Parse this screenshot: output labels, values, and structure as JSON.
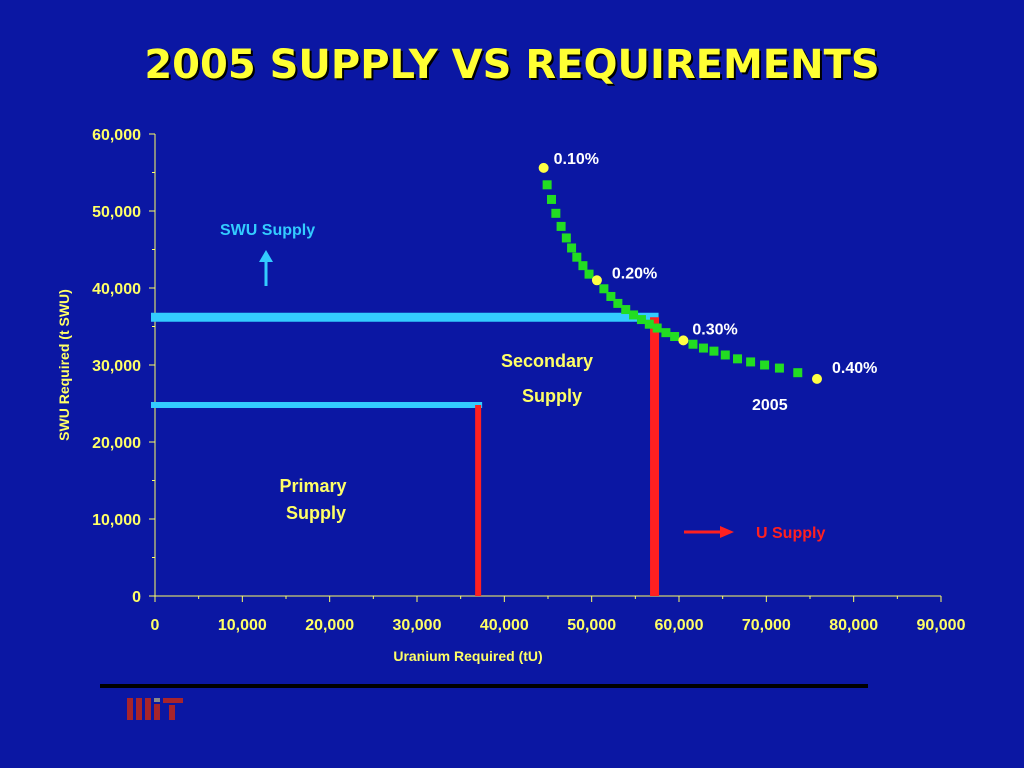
{
  "title": "2005 SUPPLY VS REQUIREMENTS",
  "colors": {
    "background": "#0b17a3",
    "title": "#ffff33",
    "axis_text": "#ffff66",
    "curve": "#22dd22",
    "curve_labeled_point": "#ffff44",
    "swu_supply": "#33ccff",
    "u_supply": "#ff2020"
  },
  "chart_data": {
    "type": "scatter",
    "xlabel": "Uranium Required (tU)",
    "ylabel": "SWU Required (t SWU)",
    "xlim": [
      0,
      90000
    ],
    "ylim": [
      0,
      60000
    ],
    "x_ticks": [
      0,
      10000,
      20000,
      30000,
      40000,
      50000,
      60000,
      70000,
      80000,
      90000
    ],
    "x_tick_labels": [
      "0",
      "10,000",
      "20,000",
      "30,000",
      "40,000",
      "50,000",
      "60,000",
      "70,000",
      "80,000",
      "90,000"
    ],
    "y_ticks": [
      0,
      10000,
      20000,
      30000,
      40000,
      50000,
      60000
    ],
    "y_tick_labels": [
      "0",
      "10,000",
      "20,000",
      "30,000",
      "40,000",
      "50,000",
      "60,000"
    ],
    "grid": false,
    "legend": "none",
    "series": [
      {
        "points": [
          [
            44500,
            55600
          ],
          [
            44900,
            53400
          ],
          [
            45400,
            51500
          ],
          [
            45900,
            49700
          ],
          [
            46500,
            48000
          ],
          [
            47100,
            46500
          ],
          [
            47700,
            45200
          ],
          [
            48300,
            44000
          ],
          [
            49000,
            42900
          ],
          [
            49700,
            41800
          ],
          [
            50600,
            41000
          ],
          [
            51400,
            39900
          ],
          [
            52200,
            38900
          ],
          [
            53000,
            38000
          ],
          [
            53900,
            37200
          ],
          [
            54800,
            36500
          ],
          [
            55700,
            35900
          ],
          [
            56600,
            35300
          ],
          [
            57500,
            34800
          ],
          [
            58500,
            34200
          ],
          [
            59500,
            33700
          ],
          [
            60500,
            33200
          ],
          [
            61600,
            32700
          ],
          [
            62800,
            32200
          ],
          [
            64000,
            31800
          ],
          [
            65300,
            31300
          ],
          [
            66700,
            30800
          ],
          [
            68200,
            30400
          ],
          [
            69800,
            30000
          ],
          [
            71500,
            29600
          ],
          [
            73600,
            29000
          ],
          [
            75800,
            28200
          ]
        ]
      }
    ],
    "labeled_points": [
      {
        "label": "0.10%",
        "x": 44500,
        "y": 55600
      },
      {
        "label": "0.20%",
        "x": 50600,
        "y": 41000
      },
      {
        "label": "0.30%",
        "x": 60500,
        "y": 33200
      },
      {
        "label": "0.40%",
        "x": 75800,
        "y": 28200
      }
    ],
    "curve_label": "2005",
    "supply_lines": {
      "primary": {
        "swu": 24800,
        "uranium": 37000
      },
      "secondary": {
        "swu": 36200,
        "uranium": 57200
      }
    },
    "annotations": {
      "primary_supply": [
        "Primary",
        "Supply"
      ],
      "secondary_supply": [
        "Secondary",
        "Supply"
      ],
      "swu_supply": "SWU Supply",
      "u_supply": "U Supply"
    }
  }
}
